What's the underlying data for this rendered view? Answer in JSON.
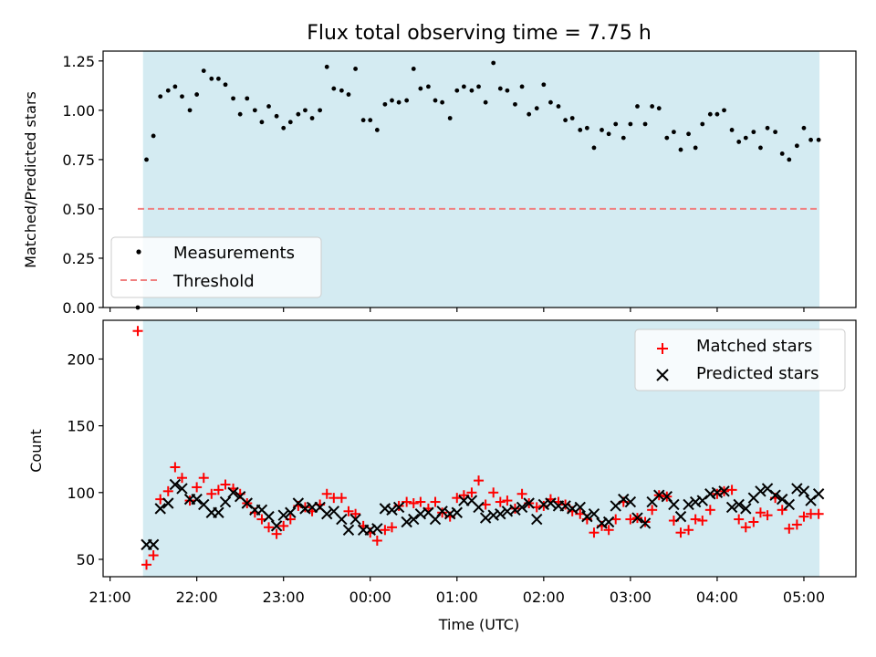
{
  "chart_data": [
    {
      "type": "scatter",
      "title": "Flux total observing time = 7.75 h",
      "xlabel": "",
      "ylabel": "Matched/Predicted stars",
      "ylim": [
        0,
        1.3
      ],
      "yticks": [
        0,
        0.25,
        0.5,
        0.75,
        1.0,
        1.25
      ],
      "ytick_labels": [
        "0.00",
        "0.25",
        "0.50",
        "0.75",
        "1.00",
        "1.25"
      ],
      "grid": false,
      "legend_position": "lower-left",
      "shaded_span": {
        "x_start": 0.38,
        "x_end": 8.18,
        "color": "#add8e6"
      },
      "threshold": {
        "name": "Threshold",
        "y": 0.5,
        "x_start": 0.32,
        "x_end": 8.18,
        "color": "#f08080",
        "style": "dashed"
      },
      "series": [
        {
          "name": "Measurements",
          "marker": "dot",
          "color": "#000000",
          "x": [
            0.32,
            0.42,
            0.5,
            0.58,
            0.67,
            0.75,
            0.83,
            0.92,
            1.0,
            1.08,
            1.17,
            1.25,
            1.33,
            1.42,
            1.5,
            1.58,
            1.67,
            1.75,
            1.83,
            1.92,
            2.0,
            2.08,
            2.17,
            2.25,
            2.33,
            2.42,
            2.5,
            2.58,
            2.67,
            2.75,
            2.83,
            2.92,
            3.0,
            3.08,
            3.17,
            3.25,
            3.33,
            3.42,
            3.5,
            3.58,
            3.67,
            3.75,
            3.83,
            3.92,
            4.0,
            4.08,
            4.17,
            4.25,
            4.33,
            4.42,
            4.5,
            4.58,
            4.67,
            4.75,
            4.83,
            4.92,
            5.0,
            5.08,
            5.17,
            5.25,
            5.33,
            5.42,
            5.5,
            5.58,
            5.67,
            5.75,
            5.83,
            5.92,
            6.0,
            6.08,
            6.17,
            6.25,
            6.33,
            6.42,
            6.5,
            6.58,
            6.67,
            6.75,
            6.83,
            6.92,
            7.0,
            7.08,
            7.17,
            7.25,
            7.33,
            7.42,
            7.5,
            7.58,
            7.67,
            7.75,
            7.83,
            7.92,
            8.0,
            8.08,
            8.17
          ],
          "y": [
            0.0,
            0.75,
            0.87,
            1.07,
            1.1,
            1.12,
            1.07,
            1.0,
            1.08,
            1.2,
            1.16,
            1.16,
            1.13,
            1.06,
            0.98,
            1.06,
            1.0,
            0.94,
            1.02,
            0.97,
            0.91,
            0.94,
            0.98,
            1.0,
            0.96,
            1.0,
            1.22,
            1.11,
            1.1,
            1.08,
            1.21,
            0.95,
            0.95,
            0.9,
            1.03,
            1.05,
            1.04,
            1.05,
            1.21,
            1.11,
            1.12,
            1.05,
            1.04,
            0.96,
            1.1,
            1.12,
            1.1,
            1.12,
            1.04,
            1.24,
            1.11,
            1.1,
            1.03,
            1.12,
            0.98,
            1.01,
            1.13,
            1.04,
            1.02,
            0.95,
            0.96,
            0.9,
            0.91,
            0.81,
            0.9,
            0.88,
            0.93,
            0.86,
            0.93,
            1.02,
            0.93,
            1.02,
            1.01,
            0.86,
            0.89,
            0.8,
            0.88,
            0.81,
            0.93,
            0.98,
            0.98,
            1.0,
            0.9,
            0.84,
            0.86,
            0.89,
            0.81,
            0.91,
            0.89,
            0.78,
            0.75,
            0.82,
            0.91,
            0.85,
            0.85
          ]
        }
      ]
    },
    {
      "type": "scatter",
      "title": "",
      "xlabel": "Time (UTC)",
      "ylabel": "Count",
      "ylim": [
        37,
        229
      ],
      "yticks": [
        50,
        100,
        150,
        200
      ],
      "ytick_labels": [
        "50",
        "100",
        "150",
        "200"
      ],
      "xlim": [
        -0.08,
        8.6
      ],
      "xticks": [
        0,
        1,
        2,
        3,
        4,
        5,
        6,
        7,
        8
      ],
      "xtick_labels": [
        "21:00",
        "22:00",
        "23:00",
        "00:00",
        "01:00",
        "02:00",
        "03:00",
        "04:00",
        "05:00"
      ],
      "grid": false,
      "legend_position": "top-right",
      "shaded_span": {
        "x_start": 0.38,
        "x_end": 8.18,
        "color": "#add8e6"
      },
      "series": [
        {
          "name": "Matched stars",
          "marker": "plus",
          "color": "#ff0000",
          "x": [
            0.32,
            0.42,
            0.5,
            0.58,
            0.67,
            0.75,
            0.83,
            0.92,
            1.0,
            1.08,
            1.17,
            1.25,
            1.33,
            1.42,
            1.5,
            1.58,
            1.67,
            1.75,
            1.83,
            1.92,
            2.0,
            2.08,
            2.17,
            2.25,
            2.33,
            2.42,
            2.5,
            2.58,
            2.67,
            2.75,
            2.83,
            2.92,
            3.0,
            3.08,
            3.17,
            3.25,
            3.33,
            3.42,
            3.5,
            3.58,
            3.67,
            3.75,
            3.83,
            3.92,
            4.0,
            4.08,
            4.17,
            4.25,
            4.33,
            4.42,
            4.5,
            4.58,
            4.67,
            4.75,
            4.83,
            4.92,
            5.0,
            5.08,
            5.17,
            5.25,
            5.33,
            5.42,
            5.5,
            5.58,
            5.67,
            5.75,
            5.83,
            5.92,
            6.0,
            6.08,
            6.17,
            6.25,
            6.33,
            6.42,
            6.5,
            6.58,
            6.67,
            6.75,
            6.83,
            6.92,
            7.0,
            7.08,
            7.17,
            7.25,
            7.33,
            7.42,
            7.5,
            7.58,
            7.67,
            7.75,
            7.83,
            7.92,
            8.0,
            8.08,
            8.17
          ],
          "y": [
            221,
            46,
            53,
            95,
            101,
            119,
            111,
            94,
            104,
            111,
            99,
            102,
            106,
            103,
            99,
            92,
            85,
            80,
            74,
            69,
            75,
            80,
            90,
            89,
            86,
            91,
            99,
            96,
            96,
            86,
            84,
            75,
            70,
            64,
            72,
            74,
            90,
            93,
            92,
            93,
            88,
            93,
            85,
            82,
            96,
            98,
            100,
            109,
            91,
            100,
            93,
            94,
            88,
            99,
            92,
            89,
            90,
            95,
            93,
            91,
            86,
            84,
            80,
            70,
            75,
            72,
            80,
            93,
            80,
            81,
            78,
            87,
            98,
            97,
            79,
            70,
            72,
            80,
            79,
            87,
            99,
            101,
            102,
            80,
            74,
            78,
            85,
            83,
            96,
            87,
            73,
            76,
            82,
            84,
            84
          ]
        },
        {
          "name": "Predicted stars",
          "marker": "x",
          "color": "#000000",
          "x": [
            0.42,
            0.5,
            0.58,
            0.67,
            0.75,
            0.83,
            0.92,
            1.0,
            1.08,
            1.17,
            1.25,
            1.33,
            1.42,
            1.5,
            1.58,
            1.67,
            1.75,
            1.83,
            1.92,
            2.0,
            2.08,
            2.17,
            2.25,
            2.33,
            2.42,
            2.5,
            2.58,
            2.67,
            2.75,
            2.83,
            2.92,
            3.0,
            3.08,
            3.17,
            3.25,
            3.33,
            3.42,
            3.5,
            3.58,
            3.67,
            3.75,
            3.83,
            3.92,
            4.0,
            4.08,
            4.17,
            4.25,
            4.33,
            4.42,
            4.5,
            4.58,
            4.67,
            4.75,
            4.83,
            4.92,
            5.0,
            5.08,
            5.17,
            5.25,
            5.33,
            5.42,
            5.5,
            5.58,
            5.67,
            5.75,
            5.83,
            5.92,
            6.0,
            6.08,
            6.17,
            6.25,
            6.33,
            6.42,
            6.5,
            6.58,
            6.67,
            6.75,
            6.83,
            6.92,
            7.0,
            7.08,
            7.17,
            7.25,
            7.33,
            7.42,
            7.5,
            7.58,
            7.67,
            7.75,
            7.83,
            7.92,
            8.0,
            8.08,
            8.17
          ],
          "y": [
            61,
            61,
            88,
            92,
            106,
            103,
            95,
            95,
            91,
            85,
            85,
            93,
            100,
            97,
            92,
            87,
            87,
            82,
            75,
            83,
            85,
            92,
            88,
            89,
            89,
            84,
            86,
            80,
            72,
            80,
            72,
            72,
            73,
            88,
            87,
            89,
            78,
            80,
            84,
            85,
            80,
            86,
            84,
            85,
            94,
            94,
            89,
            81,
            83,
            84,
            86,
            87,
            89,
            92,
            80,
            91,
            92,
            90,
            90,
            88,
            89,
            82,
            84,
            77,
            78,
            90,
            95,
            93,
            81,
            77,
            93,
            98,
            97,
            91,
            82,
            91,
            93,
            94,
            99,
            100,
            101,
            89,
            91,
            88,
            96,
            101,
            103,
            98,
            95,
            91,
            103,
            101,
            94,
            99
          ]
        }
      ]
    }
  ]
}
